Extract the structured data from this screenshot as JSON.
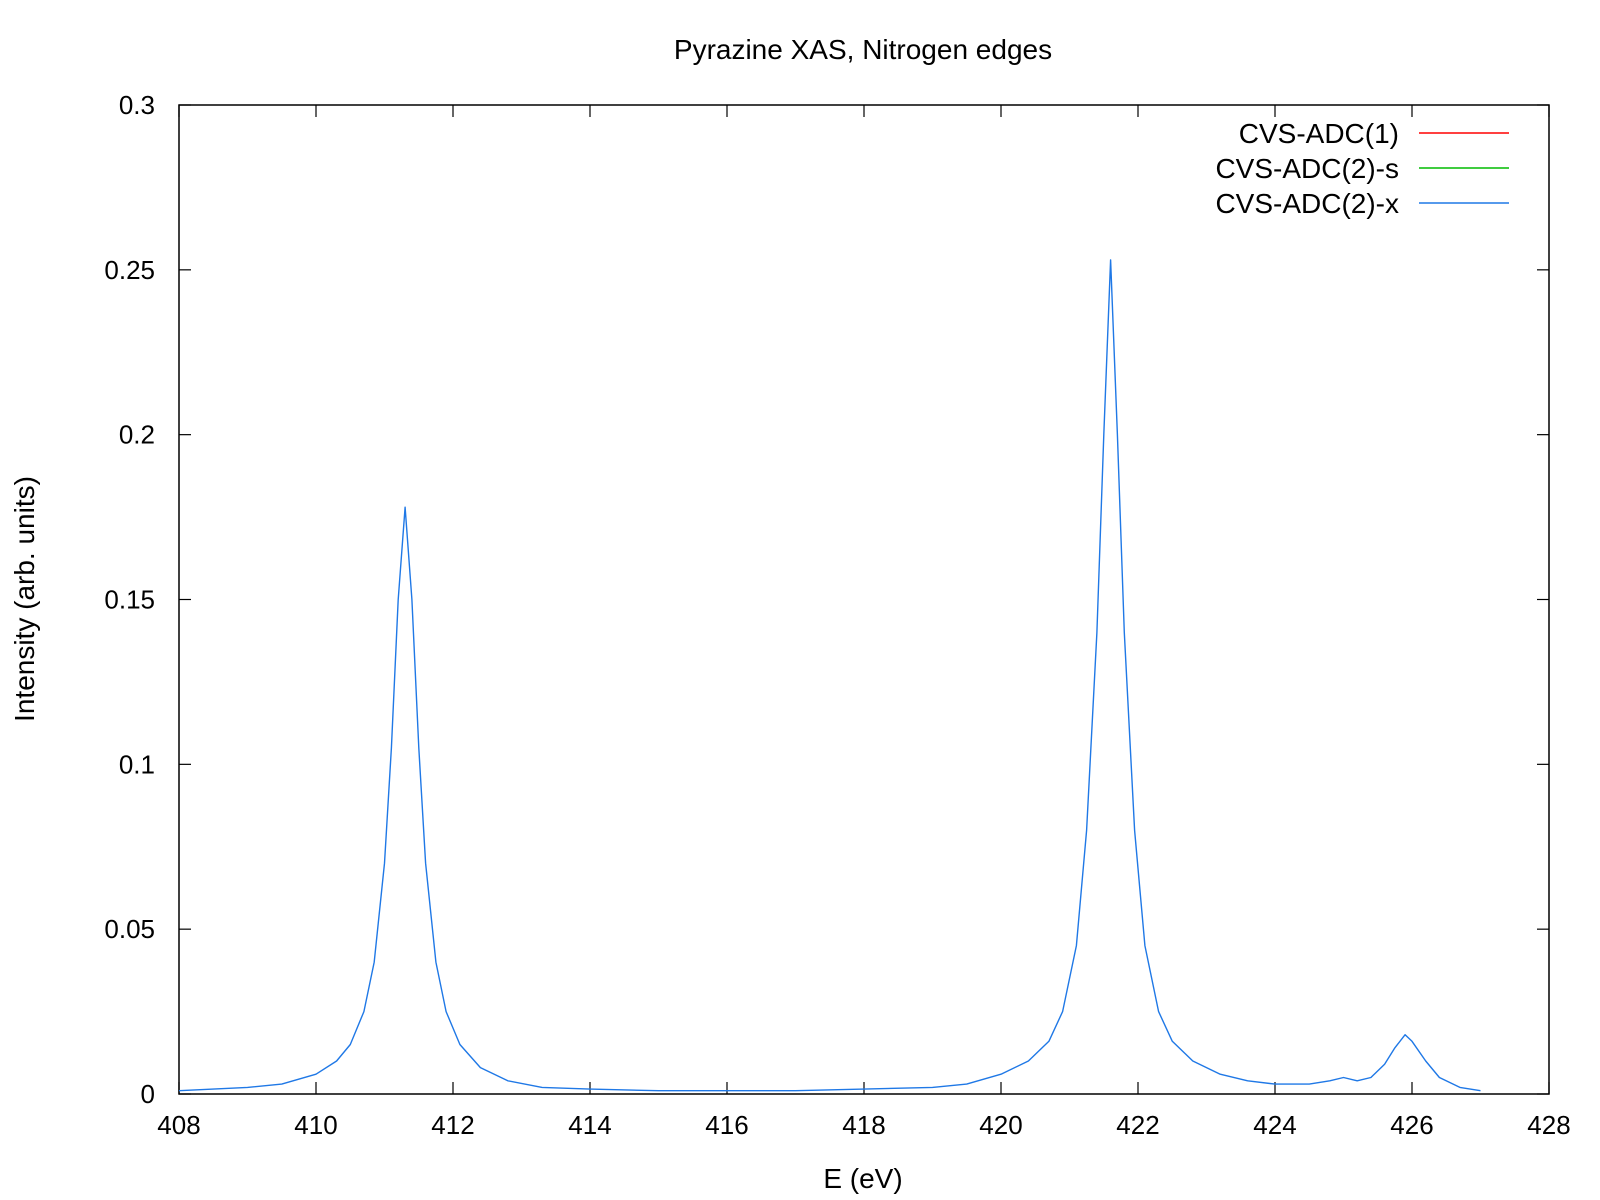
{
  "chart_data": {
    "type": "line",
    "title": "Pyrazine XAS, Nitrogen edges",
    "xlabel": "E (eV)",
    "ylabel": "Intensity (arb. units)",
    "xlim": [
      408,
      428
    ],
    "ylim": [
      0,
      0.3
    ],
    "x_ticks": [
      408,
      410,
      412,
      414,
      416,
      418,
      420,
      422,
      424,
      426,
      428
    ],
    "y_ticks": [
      0,
      0.05,
      0.1,
      0.15,
      0.2,
      0.25,
      0.3
    ],
    "y_tick_labels": [
      "0",
      "0.05",
      "0.1",
      "0.15",
      "0.2",
      "0.25",
      "0.3"
    ],
    "grid": false,
    "legend_position": "top-right",
    "series": [
      {
        "name": "CVS-ADC(1)",
        "color": "#ff0000",
        "x": [],
        "y": []
      },
      {
        "name": "CVS-ADC(2)-s",
        "color": "#00bb00",
        "x": [],
        "y": []
      },
      {
        "name": "CVS-ADC(2)-x",
        "color": "#1f78e6",
        "x": [
          408.0,
          409.0,
          409.5,
          410.0,
          410.3,
          410.5,
          410.7,
          410.85,
          411.0,
          411.1,
          411.2,
          411.3,
          411.4,
          411.5,
          411.6,
          411.75,
          411.9,
          412.1,
          412.4,
          412.8,
          413.3,
          414.0,
          415.0,
          416.0,
          417.0,
          418.0,
          419.0,
          419.5,
          420.0,
          420.4,
          420.7,
          420.9,
          421.1,
          421.25,
          421.4,
          421.5,
          421.6,
          421.7,
          421.8,
          421.95,
          422.1,
          422.3,
          422.5,
          422.8,
          423.2,
          423.6,
          424.0,
          424.5,
          424.8,
          425.0,
          425.2,
          425.4,
          425.6,
          425.75,
          425.9,
          426.0,
          426.2,
          426.4,
          426.7,
          427.0
        ],
        "y": [
          0.001,
          0.002,
          0.003,
          0.006,
          0.01,
          0.015,
          0.025,
          0.04,
          0.07,
          0.105,
          0.15,
          0.178,
          0.15,
          0.105,
          0.07,
          0.04,
          0.025,
          0.015,
          0.008,
          0.004,
          0.002,
          0.0015,
          0.001,
          0.001,
          0.001,
          0.0015,
          0.002,
          0.003,
          0.006,
          0.01,
          0.016,
          0.025,
          0.045,
          0.08,
          0.14,
          0.2,
          0.253,
          0.2,
          0.14,
          0.08,
          0.045,
          0.025,
          0.016,
          0.01,
          0.006,
          0.004,
          0.003,
          0.003,
          0.004,
          0.005,
          0.004,
          0.005,
          0.009,
          0.014,
          0.018,
          0.016,
          0.01,
          0.005,
          0.002,
          0.001
        ]
      }
    ]
  }
}
